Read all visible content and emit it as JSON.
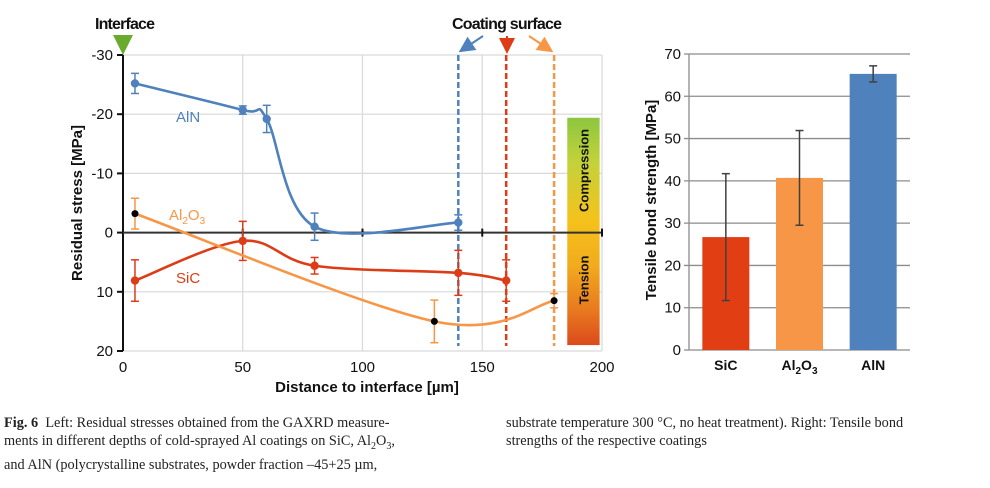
{
  "chart_data": [
    {
      "type": "line",
      "title": "",
      "xlabel": "Distance to interface [µm]",
      "ylabel": "Residual stress [MPa]",
      "xlim": [
        0,
        200
      ],
      "ylim": [
        -30,
        20
      ],
      "y_inverted": true,
      "x_ticks": [
        0,
        50,
        100,
        150,
        200
      ],
      "x_tick_labels": [
        "0",
        "50",
        "100",
        "150",
        "200"
      ],
      "y_ticks": [
        -30,
        -20,
        -10,
        0,
        10,
        20
      ],
      "y_tick_labels": [
        "-30",
        "-20",
        "-10",
        "0",
        "10",
        "20"
      ],
      "grid": true,
      "series": [
        {
          "name": "AlN",
          "label": "AlN",
          "color": "#4f81bd",
          "marker_color": "#4f81bd",
          "points": [
            {
              "x": 5,
              "y": -25.2,
              "err": 1.7
            },
            {
              "x": 50,
              "y": -20.7,
              "err": 0.7
            },
            {
              "x": 60,
              "y": -19.2,
              "err": 2.3
            },
            {
              "x": 80,
              "y": -1.0,
              "err": 2.3
            },
            {
              "x": 140,
              "y": -1.7,
              "err": 1.3
            }
          ],
          "coating_surface_x": 140
        },
        {
          "name": "SiC",
          "label": "SiC",
          "color": "#dc3d17",
          "marker_color": "#dc3d17",
          "points": [
            {
              "x": 5,
              "y": 8.1,
              "err": 3.5
            },
            {
              "x": 50,
              "y": 1.4,
              "err": 3.3
            },
            {
              "x": 80,
              "y": 5.6,
              "err": 1.4
            },
            {
              "x": 140,
              "y": 6.8,
              "err": 3.8
            },
            {
              "x": 160,
              "y": 8.1,
              "err": 3.5
            }
          ],
          "coating_surface_x": 160
        },
        {
          "name": "Al2O3",
          "label_main": "Al",
          "label_sub1": "2",
          "label_mid": "O",
          "label_sub2": "3",
          "color": "#f79646",
          "marker_color": "#000000",
          "points": [
            {
              "x": 5,
              "y": -3.2,
              "err": 2.6
            },
            {
              "x": 130,
              "y": 15.0,
              "err": 3.6
            },
            {
              "x": 180,
              "y": 11.5,
              "err": 1.2
            }
          ],
          "coating_surface_x": 180
        }
      ],
      "annotations": {
        "interface": "Interface",
        "interface_color": "#6aab2e",
        "coating_surface": "Coating surface",
        "compression": "Compression",
        "tension": "Tension"
      }
    },
    {
      "type": "bar",
      "title": "",
      "xlabel": "",
      "ylabel": "Tensile bond strength [MPa]",
      "ylim": [
        0,
        70
      ],
      "y_ticks": [
        0,
        10,
        20,
        30,
        40,
        50,
        60,
        70
      ],
      "y_tick_labels": [
        "0",
        "10",
        "20",
        "30",
        "40",
        "50",
        "60",
        "70"
      ],
      "grid": true,
      "categories": [
        "SiC",
        "Al2O3",
        "AlN"
      ],
      "category_labels": [
        {
          "main": "SiC",
          "sub1": "",
          "mid": "",
          "sub2": ""
        },
        {
          "main": "Al",
          "sub1": "2",
          "mid": "O",
          "sub2": "3"
        },
        {
          "main": "AlN",
          "sub1": "",
          "mid": "",
          "sub2": ""
        }
      ],
      "values": [
        26.7,
        40.7,
        65.3
      ],
      "errors": [
        15.0,
        11.2,
        1.9
      ],
      "colors": [
        "#e23e14",
        "#f79646",
        "#4f81bd"
      ]
    }
  ],
  "caption": {
    "fig_label": "Fig. 6",
    "left_line1": "Left: Residual stresses obtained from the GAXRD measure-",
    "left_line2_a": "ments in different depths of cold-sprayed Al coatings on SiC, Al",
    "left_line2_sub1": "2",
    "left_line2_b": "O",
    "left_line2_sub2": "3",
    "left_line2_c": ",",
    "left_line3": "and AlN (polycrystalline substrates, powder fraction –45+25 µm,",
    "right_line1": "substrate temperature 300 °C, no heat treatment). Right: Tensile bond",
    "right_line2": "strengths of the respective coatings"
  }
}
